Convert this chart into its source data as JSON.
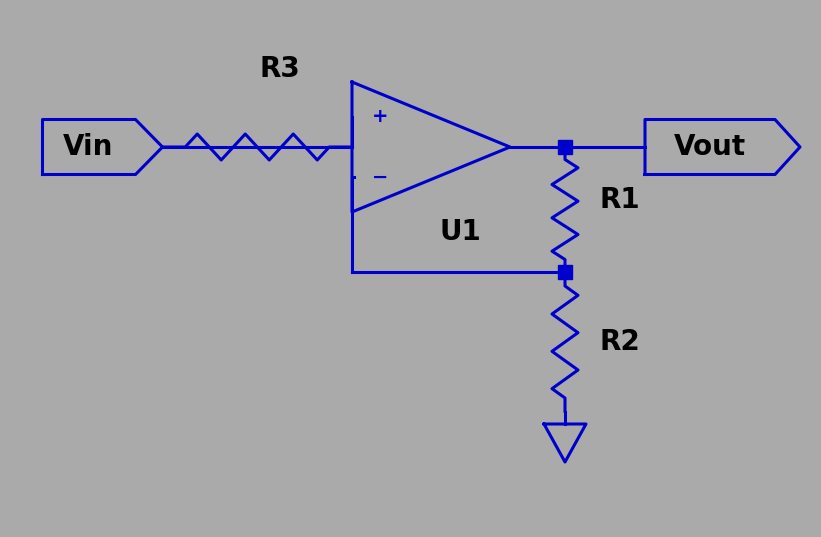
{
  "background_color": "#aaaaaa",
  "line_color": "#0000cc",
  "line_width": 2.2,
  "text_color": "#000000",
  "label_fontsize": 20,
  "label_fontweight": "bold",
  "plus_minus_fontsize": 14,
  "vin_label": "Vin",
  "vout_label": "Vout",
  "r1_label": "R1",
  "r2_label": "R2",
  "r3_label": "R3",
  "u1_label": "U1",
  "figsize": [
    8.21,
    5.37
  ],
  "dpi": 100,
  "xlim": [
    0,
    8.21
  ],
  "ylim": [
    0,
    5.37
  ]
}
